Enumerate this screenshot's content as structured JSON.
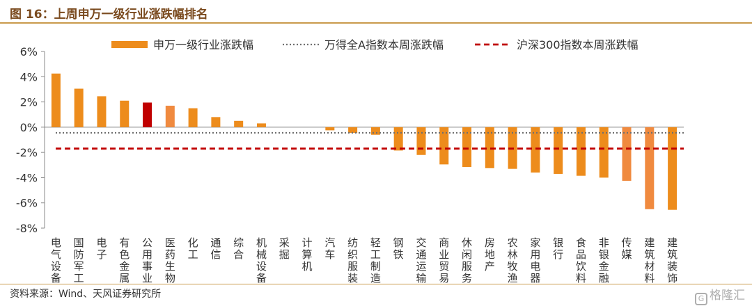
{
  "title": "图 16：上周申万一级行业涨跌幅排名",
  "source": "资料来源：Wind、天风证券研究所",
  "watermark": {
    "logo_glyph": "G",
    "text": "格隆汇"
  },
  "colors": {
    "bar": "#ed8c1c",
    "bar_light": "#f08a3f",
    "bar_highlight": "#c00000",
    "dotted_line": "#6f6f6f",
    "dashed_line": "#c00000",
    "axis": "#888888",
    "title_rule": "#c99a4b"
  },
  "chart_data": {
    "type": "bar",
    "ylim": [
      -8,
      6
    ],
    "yticks": [
      6,
      4,
      2,
      0,
      -2,
      -4,
      -6,
      -8
    ],
    "ytick_labels": [
      "6%",
      "4%",
      "2%",
      "0%",
      "-2%",
      "-4%",
      "-6%",
      "-8%"
    ],
    "grid": false,
    "legend_position": "top",
    "categories": [
      "电气设备",
      "国防军工",
      "电子",
      "有色金属",
      "公用事业",
      "医药生物",
      "化工",
      "通信",
      "综合",
      "机械设备",
      "采掘",
      "计算机",
      "汽车",
      "纺织服装",
      "轻工制造",
      "钢铁",
      "交通运输",
      "商业贸易",
      "休闲服务",
      "房地产",
      "农林牧渔",
      "家用电器",
      "银行",
      "食品饮料",
      "非银金融",
      "传媒",
      "建筑材料",
      "建筑装饰"
    ],
    "series": [
      {
        "name": "申万一级行业涨跌幅",
        "type": "bar",
        "values": [
          4.25,
          3.05,
          2.45,
          2.1,
          1.95,
          1.7,
          1.5,
          0.8,
          0.5,
          0.3,
          0.0,
          0.0,
          -0.25,
          -0.45,
          -0.6,
          -1.85,
          -2.2,
          -2.95,
          -3.15,
          -3.25,
          -3.3,
          -3.6,
          -3.7,
          -3.85,
          -4.0,
          -4.25,
          -6.5,
          -6.55
        ],
        "color_overrides": {
          "4": "bar_highlight",
          "5": "bar_light",
          "25": "bar_light",
          "26": "bar_light"
        }
      },
      {
        "name": "万得全A指数本周涨跌幅",
        "type": "line",
        "style": "dotted",
        "value": -0.45
      },
      {
        "name": "沪深300指数本周涨跌幅",
        "type": "line",
        "style": "dashed",
        "value": -1.7
      }
    ]
  }
}
